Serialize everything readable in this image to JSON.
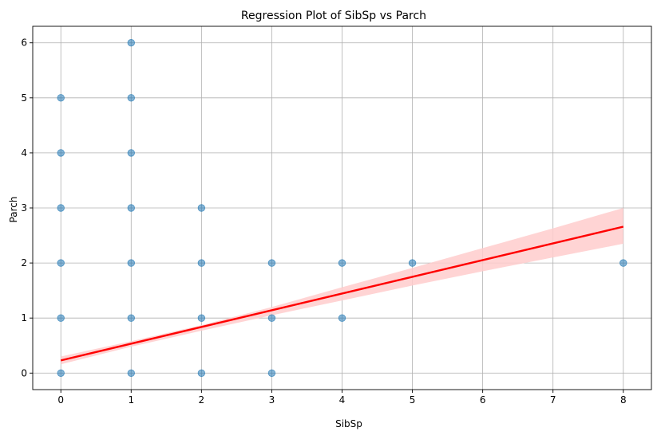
{
  "chart_data": {
    "type": "scatter",
    "title": "Regression Plot of SibSp vs Parch",
    "xlabel": "SibSp",
    "ylabel": "Parch",
    "xlim": [
      -0.4,
      8.4
    ],
    "ylim": [
      -0.3,
      6.3
    ],
    "xticks": [
      0,
      1,
      2,
      3,
      4,
      5,
      6,
      7,
      8
    ],
    "yticks": [
      0,
      1,
      2,
      3,
      4,
      5,
      6
    ],
    "grid": true,
    "colors": {
      "points": "#1f77b4",
      "regression_line": "#ff0000",
      "confidence_band": "#ffcccc",
      "grid": "#b0b0b0"
    },
    "series": [
      {
        "type": "scatter",
        "points": [
          {
            "x": 0,
            "y": 0
          },
          {
            "x": 0,
            "y": 1
          },
          {
            "x": 0,
            "y": 2
          },
          {
            "x": 0,
            "y": 3
          },
          {
            "x": 0,
            "y": 4
          },
          {
            "x": 0,
            "y": 5
          },
          {
            "x": 1,
            "y": 0
          },
          {
            "x": 1,
            "y": 1
          },
          {
            "x": 1,
            "y": 2
          },
          {
            "x": 1,
            "y": 3
          },
          {
            "x": 1,
            "y": 4
          },
          {
            "x": 1,
            "y": 5
          },
          {
            "x": 1,
            "y": 6
          },
          {
            "x": 2,
            "y": 0
          },
          {
            "x": 2,
            "y": 1
          },
          {
            "x": 2,
            "y": 2
          },
          {
            "x": 2,
            "y": 3
          },
          {
            "x": 3,
            "y": 0
          },
          {
            "x": 3,
            "y": 1
          },
          {
            "x": 3,
            "y": 2
          },
          {
            "x": 4,
            "y": 1
          },
          {
            "x": 4,
            "y": 2
          },
          {
            "x": 5,
            "y": 2
          },
          {
            "x": 8,
            "y": 2
          }
        ]
      },
      {
        "type": "regression",
        "line": [
          {
            "x": 0,
            "y": 0.23
          },
          {
            "x": 8,
            "y": 2.66
          }
        ],
        "ci_upper": [
          {
            "x": 0,
            "y": 0.3
          },
          {
            "x": 1,
            "y": 0.58
          },
          {
            "x": 2,
            "y": 0.87
          },
          {
            "x": 3,
            "y": 1.2
          },
          {
            "x": 4,
            "y": 1.56
          },
          {
            "x": 5,
            "y": 1.91
          },
          {
            "x": 6,
            "y": 2.27
          },
          {
            "x": 7,
            "y": 2.63
          },
          {
            "x": 8,
            "y": 3.0
          }
        ],
        "ci_lower": [
          {
            "x": 0,
            "y": 0.16
          },
          {
            "x": 1,
            "y": 0.48
          },
          {
            "x": 2,
            "y": 0.77
          },
          {
            "x": 3,
            "y": 1.05
          },
          {
            "x": 4,
            "y": 1.32
          },
          {
            "x": 5,
            "y": 1.59
          },
          {
            "x": 6,
            "y": 1.85
          },
          {
            "x": 7,
            "y": 2.1
          },
          {
            "x": 8,
            "y": 2.35
          }
        ]
      }
    ]
  }
}
